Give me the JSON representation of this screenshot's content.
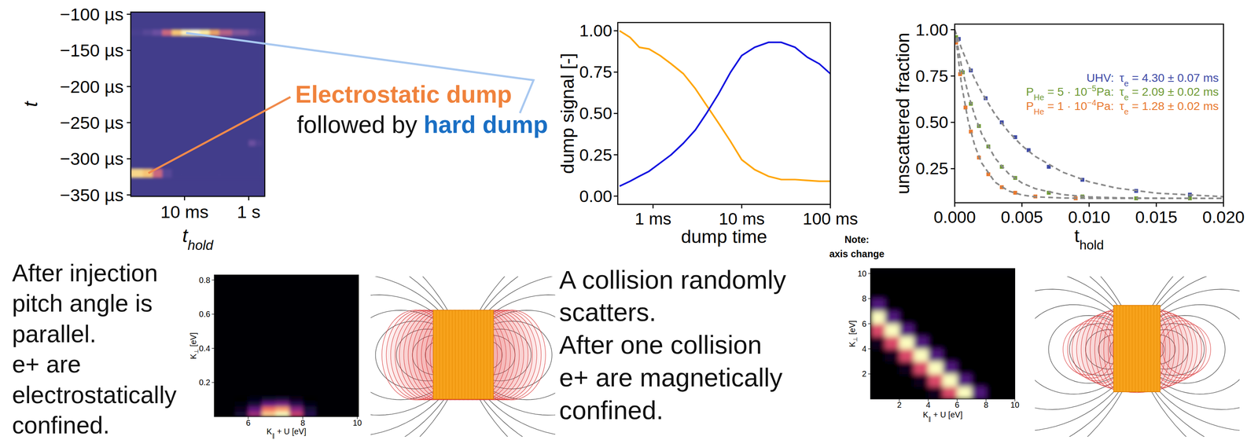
{
  "slide": {
    "electrostatic_dump": "Electrostatic dump",
    "followed_by": "followed by",
    "hard_dump": "hard dump",
    "caption_left": [
      "After injection",
      "pitch angle is",
      "parallel.",
      "e+ are",
      "electrostatically",
      "confined."
    ],
    "caption_middle": [
      "A collision randomly",
      "scatters.",
      "After one collision",
      "e+ are magnetically",
      "confined."
    ],
    "note": [
      "Note:",
      "axis change"
    ]
  },
  "chart_data": [
    {
      "type": "heatmap",
      "x_label": [
        "t",
        {
          "sub": "hold"
        }
      ],
      "y_label": "t",
      "log": "x",
      "xlim": [
        0.000211,
        3.16
      ],
      "ylim": [
        -352,
        -97
      ],
      "xticks": [
        {
          "value": 0.01,
          "label": "10 ms"
        },
        {
          "value": 1,
          "label": "1 s"
        }
      ],
      "yticks": [
        {
          "value": -100,
          "label": "−100 µs"
        },
        {
          "value": -150,
          "label": "−150 µs"
        },
        {
          "value": -200,
          "label": "−200 µs"
        },
        {
          "value": -250,
          "label": "−250 µs"
        },
        {
          "value": -300,
          "label": "−300 µs"
        },
        {
          "value": -350,
          "label": "−350 µs"
        }
      ],
      "x_bins": [
        0.0002,
        0.0005,
        0.001,
        0.002,
        0.004,
        0.008,
        0.015,
        0.03,
        0.06,
        0.12,
        0.3,
        1,
        1.6,
        2.5
      ],
      "y_bins": [
        -326,
        -314,
        -282,
        -274,
        -129,
        -121
      ],
      "cells": [
        [
          0.85,
          0.8,
          0.55,
          0.15,
          0,
          0,
          0,
          0,
          0,
          0,
          0,
          0,
          0
        ],
        [
          0,
          0,
          0,
          0,
          0,
          0,
          0,
          0,
          0,
          0,
          0,
          0,
          0
        ],
        [
          0,
          0,
          0,
          0,
          0,
          0,
          0,
          0,
          0,
          0,
          0,
          0.3,
          0.1
        ],
        [
          0,
          0,
          0,
          0,
          0,
          0,
          0,
          0,
          0,
          0,
          0,
          0,
          0
        ],
        [
          0.05,
          0.15,
          0.3,
          0.55,
          0.8,
          0.95,
          1.0,
          0.9,
          0.7,
          0.5,
          0.35,
          0.2,
          0.1
        ]
      ],
      "color_range": [
        0,
        1
      ]
    },
    {
      "type": "line",
      "x_label": "dump time",
      "y_label": "dump signal [-]",
      "log": "x",
      "xlim": [
        0.4,
        100
      ],
      "ylim": [
        -0.05,
        1.05
      ],
      "xticks": [
        {
          "value": 1,
          "label": "1 ms"
        },
        {
          "value": 10,
          "label": "10 ms"
        },
        {
          "value": 100,
          "label": "100 ms"
        }
      ],
      "yticks": [
        {
          "value": 0,
          "label": "0.00"
        },
        {
          "value": 0.25,
          "label": "0.25"
        },
        {
          "value": 0.5,
          "label": "0.50"
        },
        {
          "value": 0.75,
          "label": "0.75"
        },
        {
          "value": 1,
          "label": "1.00"
        }
      ],
      "x": [
        0.42,
        0.55,
        0.7,
        0.9,
        1.2,
        1.6,
        2.2,
        3.0,
        4.0,
        5.5,
        7.5,
        10,
        14,
        20,
        28,
        40,
        55,
        75,
        100
      ],
      "series": [
        {
          "color": "#ffa500",
          "values": [
            1.0,
            0.96,
            0.9,
            0.89,
            0.85,
            0.8,
            0.74,
            0.65,
            0.55,
            0.44,
            0.33,
            0.22,
            0.16,
            0.12,
            0.1,
            0.1,
            0.095,
            0.09,
            0.09
          ]
        },
        {
          "color": "#1010e0",
          "values": [
            0.06,
            0.09,
            0.12,
            0.15,
            0.2,
            0.25,
            0.32,
            0.4,
            0.5,
            0.62,
            0.75,
            0.85,
            0.9,
            0.93,
            0.93,
            0.9,
            0.84,
            0.8,
            0.74
          ]
        }
      ]
    },
    {
      "type": "scatter",
      "x_label": [
        "t",
        {
          "sub": "hold"
        }
      ],
      "y_label": "unscattered fraction",
      "xlim": [
        0,
        0.02
      ],
      "ylim": [
        0.066,
        1.03
      ],
      "xticks": [
        {
          "value": 0,
          "label": "0.000"
        },
        {
          "value": 0.005,
          "label": "0.005"
        },
        {
          "value": 0.01,
          "label": "0.010"
        },
        {
          "value": 0.015,
          "label": "0.015"
        },
        {
          "value": 0.02,
          "label": "0.020"
        }
      ],
      "yticks": [
        {
          "value": 0.25,
          "label": "0.25"
        },
        {
          "value": 0.5,
          "label": "0.50"
        },
        {
          "value": 0.75,
          "label": "0.75"
        },
        {
          "value": 1,
          "label": "1.00"
        }
      ],
      "legend": "upper right",
      "series": [
        {
          "name": "UHV:",
          "fit_label": [
            "τ",
            {
              "sub": "e"
            },
            " = 4.30 ± 0.07 ms"
          ],
          "color": "#3d4aa6",
          "marker": "square",
          "x": [
            0.0003,
            0.0012,
            0.0023,
            0.0035,
            0.0045,
            0.0055,
            0.007,
            0.0095,
            0.0135,
            0.0175
          ],
          "values": [
            0.95,
            0.78,
            0.63,
            0.5,
            0.42,
            0.35,
            0.26,
            0.19,
            0.13,
            0.11
          ]
        },
        {
          "name": [
            "P",
            {
              "sub": "He"
            },
            " = 5 · 10",
            {
              "sup": "−5"
            },
            "Pa:"
          ],
          "fit_label": [
            "τ",
            {
              "sub": "e"
            },
            " = 2.09 ± 0.02 ms"
          ],
          "color": "#6f9a35",
          "marker": "square",
          "x": [
            0.0001,
            0.0006,
            0.0012,
            0.0018,
            0.0025,
            0.0035,
            0.0045,
            0.007,
            0.0095,
            0.0135,
            0.0175
          ],
          "values": [
            0.96,
            0.77,
            0.6,
            0.48,
            0.37,
            0.26,
            0.2,
            0.12,
            0.1,
            0.09,
            0.09
          ]
        },
        {
          "name": [
            "P",
            {
              "sub": "He"
            },
            " = 1 · 10",
            {
              "sup": "−4"
            },
            "Pa:"
          ],
          "fit_label": [
            "τ",
            {
              "sub": "e"
            },
            " = 1.28 ± 0.02 ms"
          ],
          "color": "#e8792f",
          "marker": "square",
          "x": [
            0.0001,
            0.0004,
            0.0008,
            0.0012,
            0.0018,
            0.0025,
            0.0035,
            0.0045,
            0.006,
            0.009
          ],
          "values": [
            0.93,
            0.76,
            0.58,
            0.45,
            0.31,
            0.22,
            0.15,
            0.12,
            0.1,
            0.09
          ]
        },
        {
          "type": "line",
          "line_style": "dashed",
          "color": "#8a8a8a",
          "x": [
            0,
            0.0005,
            0.001,
            0.0015,
            0.002,
            0.003,
            0.004,
            0.005,
            0.006,
            0.008,
            0.01,
            0.012,
            0.015,
            0.02
          ],
          "values": [
            1.0,
            0.9,
            0.811,
            0.732,
            0.662,
            0.543,
            0.449,
            0.374,
            0.316,
            0.232,
            0.179,
            0.146,
            0.118,
            0.099
          ]
        },
        {
          "type": "line",
          "line_style": "dashed",
          "color": "#8a8a8a",
          "x": [
            0,
            0.0005,
            0.001,
            0.0015,
            0.002,
            0.003,
            0.004,
            0.005,
            0.006,
            0.008,
            0.01,
            0.012,
            0.015,
            0.02
          ],
          "values": [
            1.0,
            0.806,
            0.654,
            0.534,
            0.439,
            0.307,
            0.224,
            0.173,
            0.142,
            0.11,
            0.098,
            0.093,
            0.091,
            0.09
          ]
        },
        {
          "type": "line",
          "line_style": "dashed",
          "color": "#8a8a8a",
          "x": [
            0,
            0.0005,
            0.001,
            0.0015,
            0.002,
            0.003,
            0.004,
            0.005,
            0.006,
            0.008,
            0.01,
            0.012,
            0.015,
            0.02
          ],
          "values": [
            1.0,
            0.706,
            0.507,
            0.372,
            0.281,
            0.177,
            0.13,
            0.108,
            0.098,
            0.092,
            0.09,
            0.09,
            0.09,
            0.09
          ]
        }
      ]
    },
    {
      "type": "heatmap",
      "x_label": [
        "K",
        {
          "sub": "∥"
        },
        " + U [eV]"
      ],
      "y_label": [
        "K",
        {
          "sub": "⊥"
        },
        " [eV]"
      ],
      "xlim": [
        4.75,
        10.05
      ],
      "ylim": [
        0,
        0.83
      ],
      "xticks": [
        6,
        8,
        10
      ],
      "yticks": [
        0.2,
        0.4,
        0.6,
        0.8
      ],
      "x_bins": [
        5.5,
        6,
        6.5,
        7,
        7.5,
        8,
        8.5
      ],
      "y_bins": [
        0,
        0.03,
        0.06,
        0.09,
        0.12
      ],
      "cells": [
        [
          0.1,
          0.45,
          0.9,
          1.0,
          0.55,
          0.15
        ],
        [
          0.05,
          0.3,
          0.7,
          0.8,
          0.4,
          0.1
        ],
        [
          0.02,
          0.1,
          0.3,
          0.35,
          0.15,
          0.03
        ],
        [
          0,
          0.03,
          0.08,
          0.1,
          0.04,
          0
        ]
      ],
      "color_range": [
        0,
        1
      ]
    },
    {
      "type": "heatmap",
      "x_label": [
        "K",
        {
          "sub": "∥"
        },
        " + U [eV]"
      ],
      "y_label": [
        "K",
        {
          "sub": "⊥"
        },
        " [eV]"
      ],
      "xlim": [
        0,
        10
      ],
      "ylim": [
        0,
        10.4
      ],
      "xticks": [
        2,
        4,
        6,
        8,
        10
      ],
      "yticks": [
        2,
        4,
        6,
        8,
        10
      ],
      "x_bins": [
        0,
        1,
        2,
        3,
        4,
        5,
        6,
        7,
        8,
        9,
        10
      ],
      "y_bins": [
        0,
        1,
        2,
        3,
        4,
        5,
        6,
        7,
        8,
        9,
        10
      ],
      "cells": [
        [
          0,
          0,
          0,
          0,
          0.05,
          0.6,
          1.0,
          0.25,
          0,
          0
        ],
        [
          0,
          0,
          0,
          0.05,
          0.6,
          1.0,
          0.25,
          0,
          0,
          0
        ],
        [
          0,
          0,
          0.05,
          0.6,
          1.0,
          0.25,
          0,
          0,
          0,
          0
        ],
        [
          0,
          0.05,
          0.6,
          1.0,
          0.25,
          0,
          0,
          0,
          0,
          0
        ],
        [
          0.05,
          0.6,
          1.0,
          0.25,
          0,
          0,
          0,
          0,
          0,
          0
        ],
        [
          0.6,
          1.0,
          0.25,
          0,
          0,
          0,
          0,
          0,
          0,
          0
        ],
        [
          1.0,
          0.25,
          0,
          0,
          0,
          0,
          0,
          0,
          0,
          0
        ],
        [
          0.25,
          0,
          0,
          0,
          0,
          0,
          0,
          0,
          0,
          0
        ],
        [
          0,
          0,
          0,
          0,
          0,
          0,
          0,
          0,
          0,
          0
        ],
        [
          0,
          0,
          0,
          0,
          0,
          0,
          0,
          0,
          0,
          0
        ]
      ],
      "color_range": [
        0,
        1
      ]
    }
  ]
}
